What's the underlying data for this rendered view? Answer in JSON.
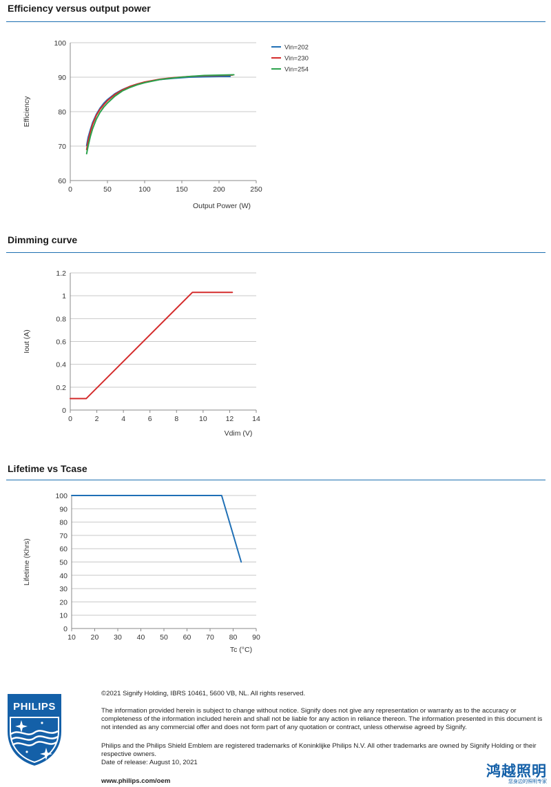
{
  "sections": {
    "efficiency_title": "Efficiency versus output power",
    "dimming_title": "Dimming curve",
    "lifetime_title": "Lifetime vs Tcase"
  },
  "chart_data": [
    {
      "type": "line",
      "title": "Efficiency versus output power",
      "xlabel": "Output Power (W)",
      "ylabel": "Efficiency",
      "xlim": [
        0,
        250
      ],
      "ylim": [
        60,
        100
      ],
      "xticks": [
        "0",
        "50",
        "100",
        "150",
        "200",
        "250"
      ],
      "yticks": [
        "60",
        "70",
        "80",
        "90",
        "100"
      ],
      "grid": "horizontal",
      "legend_position": "right",
      "series": [
        {
          "name": "Vin=202",
          "color": "#1f6fb5",
          "x": [
            22,
            24,
            27,
            30,
            35,
            40,
            45,
            50,
            60,
            70,
            80,
            90,
            100,
            120,
            140,
            160,
            180,
            200,
            215
          ],
          "y": [
            70.2,
            72.5,
            74.8,
            76.8,
            79.2,
            81.0,
            82.4,
            83.5,
            85.2,
            86.4,
            87.3,
            88.0,
            88.5,
            89.3,
            89.7,
            90.0,
            90.1,
            90.2,
            90.2
          ]
        },
        {
          "name": "Vin=230",
          "color": "#d42b2b",
          "x": [
            22,
            24,
            27,
            30,
            35,
            40,
            45,
            50,
            60,
            70,
            80,
            90,
            100,
            120,
            140,
            160,
            180,
            200,
            218
          ],
          "y": [
            69.0,
            71.5,
            74.2,
            76.3,
            78.9,
            80.7,
            82.0,
            83.2,
            85.0,
            86.3,
            87.3,
            88.0,
            88.6,
            89.4,
            89.9,
            90.2,
            90.4,
            90.5,
            90.6
          ]
        },
        {
          "name": "Vin=254",
          "color": "#2ba24c",
          "x": [
            22,
            24,
            27,
            30,
            35,
            40,
            45,
            50,
            60,
            70,
            80,
            90,
            100,
            120,
            140,
            160,
            180,
            200,
            220
          ],
          "y": [
            67.8,
            70.0,
            72.8,
            75.0,
            77.8,
            79.8,
            81.3,
            82.5,
            84.5,
            86.0,
            87.0,
            87.8,
            88.4,
            89.3,
            89.8,
            90.2,
            90.5,
            90.6,
            90.7
          ]
        }
      ]
    },
    {
      "type": "line",
      "title": "Dimming curve",
      "xlabel": "Vdim (V)",
      "ylabel": "Iout (A)",
      "xlim": [
        0,
        14
      ],
      "ylim": [
        0,
        1.2
      ],
      "xticks": [
        "0",
        "2",
        "4",
        "6",
        "8",
        "10",
        "12",
        "14"
      ],
      "yticks": [
        "0",
        "0.2",
        "0.4",
        "0.6",
        "0.8",
        "1",
        "1.2"
      ],
      "grid": "horizontal",
      "series": [
        {
          "color": "#d42b2b",
          "x": [
            0,
            1.2,
            9.2,
            12.2
          ],
          "y": [
            0.1,
            0.1,
            1.03,
            1.03
          ]
        }
      ]
    },
    {
      "type": "line",
      "title": "Lifetime vs Tcase",
      "xlabel": "Tc (°C)",
      "ylabel": "Lifetime (Khrs)",
      "xlim": [
        10,
        90
      ],
      "ylim": [
        0,
        100
      ],
      "xticks": [
        "10",
        "20",
        "30",
        "40",
        "50",
        "60",
        "70",
        "80",
        "90"
      ],
      "yticks": [
        "0",
        "10",
        "20",
        "30",
        "40",
        "50",
        "60",
        "70",
        "80",
        "90",
        "100"
      ],
      "grid": "horizontal",
      "series": [
        {
          "color": "#1f6fb5",
          "x": [
            10,
            75,
            83.5
          ],
          "y": [
            100,
            100,
            50
          ]
        }
      ]
    }
  ],
  "footer": {
    "copyright": "©2021 Signify Holding, IBRS 10461, 5600 VB, NL. All rights reserved.",
    "disclaimer": "The information provided herein is subject to change without notice. Signify does not give any representation or warranty as to the accuracy or completeness of the information included herein and shall not be liable for any action in reliance thereon. The information presented in this document is not intended as any commercial offer and does not form part of any quotation or contract, unless otherwise agreed by Signify.",
    "trademarks": "Philips and the Philips Shield Emblem are registered trademarks of Koninklijke Philips N.V. All other trademarks are owned by Signify Holding or their respective owners.",
    "release_date": "Date of release: August 10, 2021",
    "website": "www.philips.com/oem"
  },
  "logo": {
    "brand": "PHILIPS",
    "color": "#1460a8"
  },
  "watermark": {
    "title": "鸿越照明",
    "subtitle": "您身边的照明专家"
  }
}
